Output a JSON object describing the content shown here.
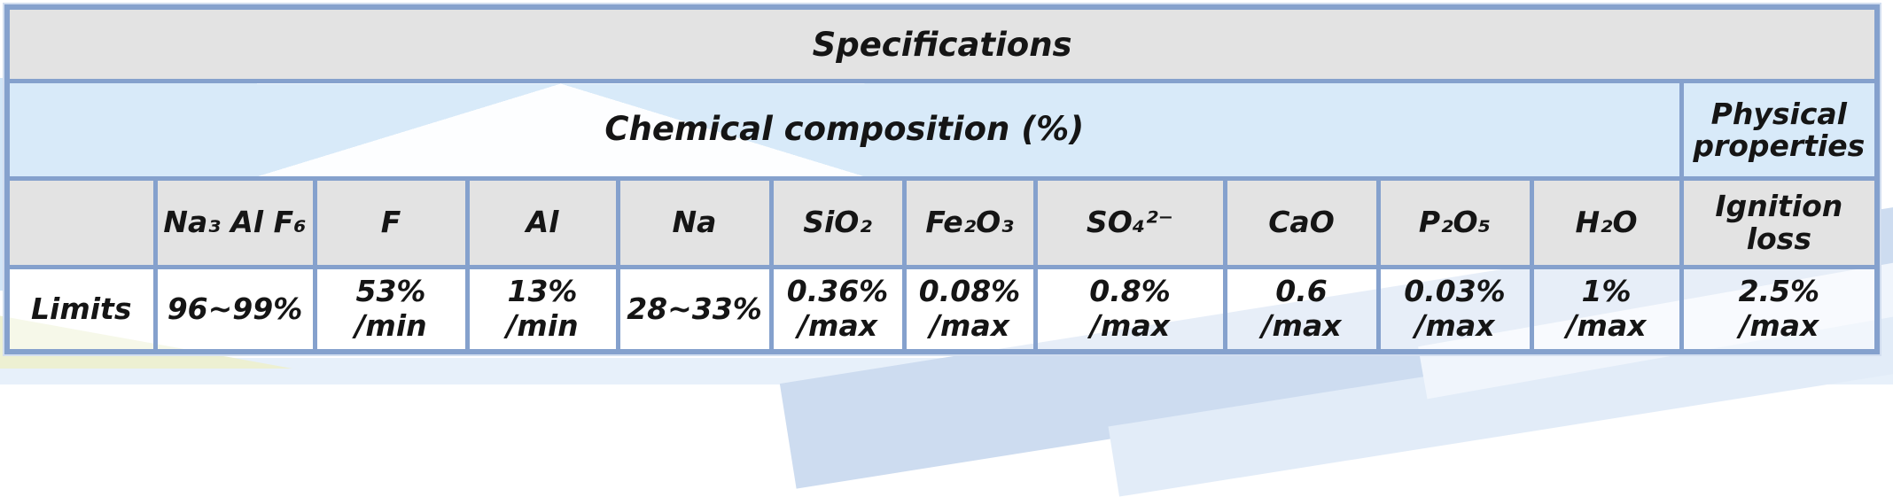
{
  "table": {
    "title": "Specifications",
    "groups": {
      "chemical": "Chemical composition (%)",
      "physical": "Physical properties"
    },
    "columns": [
      "",
      "Na₃ Al F₆",
      "F",
      "Al",
      "Na",
      "SiO₂",
      "Fe₂O₃",
      "SO₄²⁻",
      "CaO",
      "P₂O₅",
      "H₂O",
      "Ignition loss"
    ],
    "rows": [
      {
        "label": "Limits",
        "cells": [
          {
            "value": "96~99%",
            "qualifier": ""
          },
          {
            "value": "53%",
            "qualifier": "/min"
          },
          {
            "value": "13%",
            "qualifier": "/min"
          },
          {
            "value": "28~33%",
            "qualifier": ""
          },
          {
            "value": "0.36%",
            "qualifier": "/max"
          },
          {
            "value": "0.08%",
            "qualifier": "/max"
          },
          {
            "value": "0.8%",
            "qualifier": "/max"
          },
          {
            "value": "0.6",
            "qualifier": "/max"
          },
          {
            "value": "0.03%",
            "qualifier": "/max"
          },
          {
            "value": "1%",
            "qualifier": "/max"
          },
          {
            "value": "2.5%",
            "qualifier": "/max"
          }
        ]
      }
    ]
  },
  "colors": {
    "table_border": "#85a1cd",
    "header_bg": "#e3e3e3",
    "group_bg": "#d8eaf9",
    "stripe": "#cddcf0",
    "wedge": "#edf0d2"
  }
}
